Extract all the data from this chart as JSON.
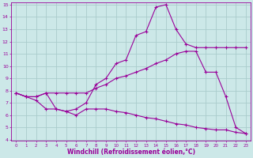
{
  "line1_x": [
    0,
    1,
    2,
    3,
    4,
    5,
    6,
    7,
    8,
    9,
    10,
    11,
    12,
    13,
    14,
    15,
    16,
    17,
    18,
    19,
    20,
    21,
    22,
    23
  ],
  "line1_y": [
    7.8,
    7.5,
    7.5,
    7.8,
    6.5,
    6.3,
    6.5,
    7.0,
    8.5,
    9.0,
    10.2,
    10.5,
    12.5,
    12.8,
    14.8,
    15.0,
    13.0,
    11.8,
    11.5,
    11.5,
    11.5,
    11.5,
    11.5,
    11.5
  ],
  "line2_x": [
    0,
    1,
    2,
    3,
    4,
    5,
    6,
    7,
    8,
    9,
    10,
    11,
    12,
    13,
    14,
    15,
    16,
    17,
    18,
    19,
    20,
    21,
    22,
    23
  ],
  "line2_y": [
    7.8,
    7.5,
    7.5,
    7.8,
    7.8,
    7.8,
    7.8,
    7.8,
    8.2,
    8.5,
    9.0,
    9.2,
    9.5,
    9.8,
    10.2,
    10.5,
    11.0,
    11.2,
    11.2,
    9.5,
    9.5,
    7.5,
    5.0,
    4.5
  ],
  "line3_x": [
    0,
    1,
    2,
    3,
    4,
    5,
    6,
    7,
    8,
    9,
    10,
    11,
    12,
    13,
    14,
    15,
    16,
    17,
    18,
    19,
    20,
    21,
    22,
    23
  ],
  "line3_y": [
    7.8,
    7.5,
    7.2,
    6.5,
    6.5,
    6.3,
    6.0,
    6.5,
    6.5,
    6.5,
    6.3,
    6.2,
    6.0,
    5.8,
    5.7,
    5.5,
    5.3,
    5.2,
    5.0,
    4.9,
    4.8,
    4.8,
    4.6,
    4.5
  ],
  "line_color": "#990099",
  "bg_color": "#cce8e8",
  "grid_color": "#aacccc",
  "xlabel": "Windchill (Refroidissement éolien,°C)",
  "ylim": [
    4,
    15
  ],
  "xlim": [
    -0.5,
    23.5
  ],
  "yticks": [
    4,
    5,
    6,
    7,
    8,
    9,
    10,
    11,
    12,
    13,
    14,
    15
  ],
  "xticks": [
    0,
    1,
    2,
    3,
    4,
    5,
    6,
    7,
    8,
    9,
    10,
    11,
    12,
    13,
    14,
    15,
    16,
    17,
    18,
    19,
    20,
    21,
    22,
    23
  ]
}
